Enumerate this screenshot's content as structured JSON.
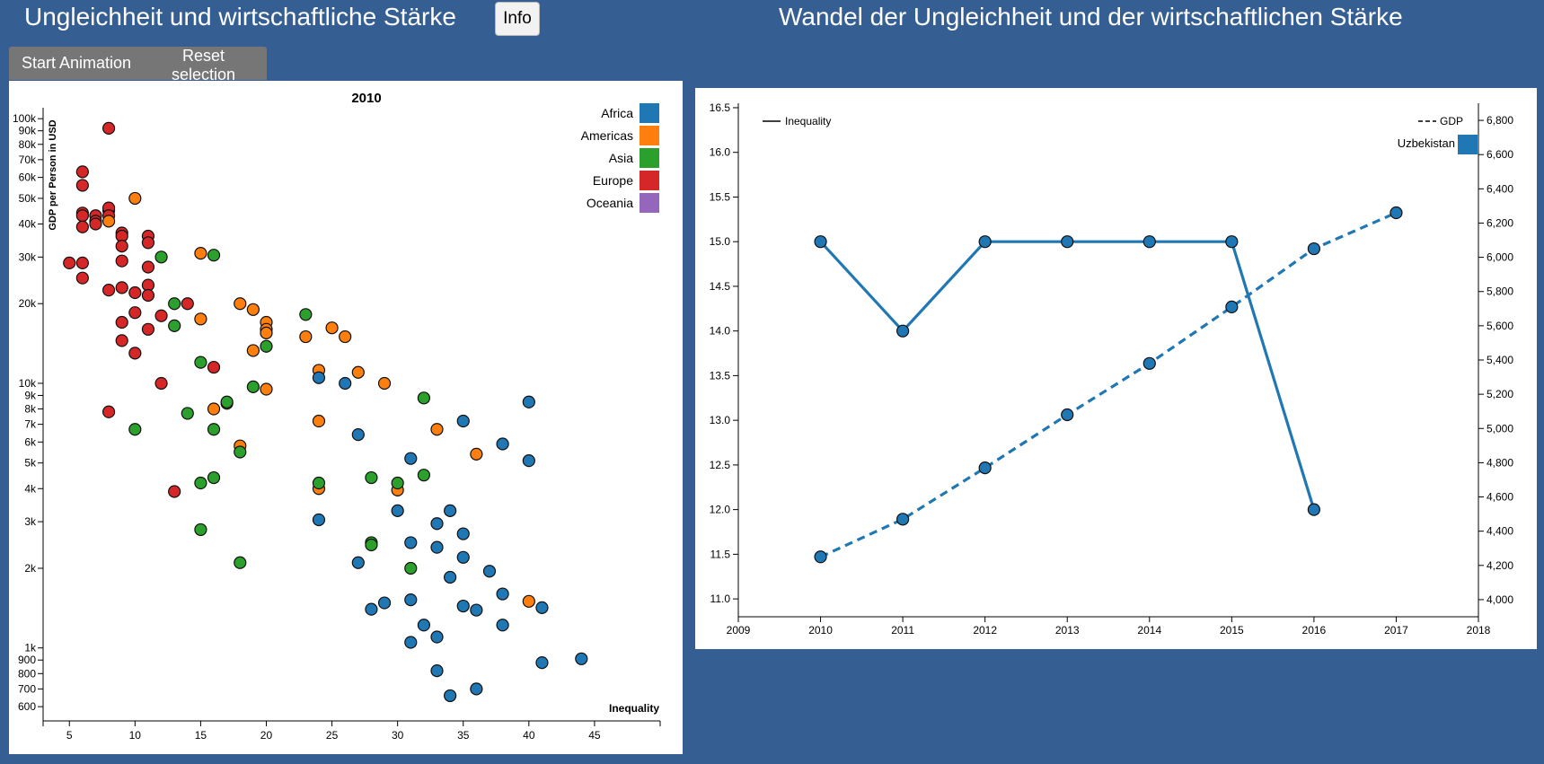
{
  "header": {
    "left_title": "Ungleichheit und wirtschaftliche Stärke",
    "info_label": "Info",
    "right_title": "Wandel der Ungleichheit und der wirtschaftlichen Stärke"
  },
  "controls": {
    "start_animation_label": "Start Animation",
    "reset_selection_label": "Reset selection"
  },
  "colors": {
    "page_background": "#355f93",
    "Africa": "#1f77b4",
    "Americas": "#ff7f0e",
    "Asia": "#2ca02c",
    "Europe": "#d62728",
    "Oceania": "#9467bd"
  },
  "chart_data": [
    {
      "type": "scatter",
      "title": "2010",
      "xlabel": "Inequality",
      "ylabel": "GDP per Person in USD",
      "y_scale": "log",
      "xlim": [
        3,
        50
      ],
      "ylim": [
        530,
        110000
      ],
      "x_ticks": [
        "5",
        "10",
        "15",
        "20",
        "25",
        "30",
        "35",
        "40",
        "45"
      ],
      "y_ticks": [
        {
          "v": 600,
          "l": "600"
        },
        {
          "v": 700,
          "l": "700"
        },
        {
          "v": 800,
          "l": "800"
        },
        {
          "v": 900,
          "l": "900"
        },
        {
          "v": 1000,
          "l": "1k"
        },
        {
          "v": 2000,
          "l": "2k"
        },
        {
          "v": 3000,
          "l": "3k"
        },
        {
          "v": 4000,
          "l": "4k"
        },
        {
          "v": 5000,
          "l": "5k"
        },
        {
          "v": 6000,
          "l": "6k"
        },
        {
          "v": 7000,
          "l": "7k"
        },
        {
          "v": 8000,
          "l": "8k"
        },
        {
          "v": 9000,
          "l": "9k"
        },
        {
          "v": 10000,
          "l": "10k"
        },
        {
          "v": 20000,
          "l": "20k"
        },
        {
          "v": 30000,
          "l": "30k"
        },
        {
          "v": 40000,
          "l": "40k"
        },
        {
          "v": 50000,
          "l": "50k"
        },
        {
          "v": 60000,
          "l": "60k"
        },
        {
          "v": 70000,
          "l": "70k"
        },
        {
          "v": 80000,
          "l": "80k"
        },
        {
          "v": 90000,
          "l": "90k"
        },
        {
          "v": 100000,
          "l": "100k"
        }
      ],
      "legend": [
        "Africa",
        "Americas",
        "Asia",
        "Europe",
        "Oceania"
      ],
      "legend_position": "top-right",
      "series": [
        {
          "name": "Europe",
          "points": [
            [
              8,
              92000
            ],
            [
              6,
              63000
            ],
            [
              6,
              56000
            ],
            [
              6,
              44000
            ],
            [
              6,
              43000
            ],
            [
              6,
              39000
            ],
            [
              7,
              43000
            ],
            [
              7,
              41000
            ],
            [
              7,
              40000
            ],
            [
              8,
              45000
            ],
            [
              8,
              46000
            ],
            [
              8,
              43000
            ],
            [
              9,
              37000
            ],
            [
              9,
              36000
            ],
            [
              9,
              33000
            ],
            [
              9,
              29000
            ],
            [
              9,
              23000
            ],
            [
              9,
              17000
            ],
            [
              9,
              14500
            ],
            [
              5,
              28500
            ],
            [
              6,
              28500
            ],
            [
              6,
              25000
            ],
            [
              8,
              22500
            ],
            [
              10,
              22000
            ],
            [
              10,
              18500
            ],
            [
              10,
              13000
            ],
            [
              11,
              36000
            ],
            [
              11,
              34000
            ],
            [
              11,
              27500
            ],
            [
              11,
              23500
            ],
            [
              11,
              21500
            ],
            [
              11,
              16000
            ],
            [
              12,
              18000
            ],
            [
              12,
              10000
            ],
            [
              14,
              20000
            ],
            [
              16,
              11500
            ],
            [
              8,
              7800
            ],
            [
              13,
              3900
            ]
          ]
        },
        {
          "name": "Americas",
          "points": [
            [
              10,
              50000
            ],
            [
              8,
              41000
            ],
            [
              15,
              31000
            ],
            [
              15,
              17500
            ],
            [
              18,
              20000
            ],
            [
              19,
              19000
            ],
            [
              20,
              17000
            ],
            [
              20,
              16000
            ],
            [
              20,
              15500
            ],
            [
              23,
              15000
            ],
            [
              25,
              16200
            ],
            [
              26,
              15000
            ],
            [
              19,
              13300
            ],
            [
              20,
              9500
            ],
            [
              24,
              11200
            ],
            [
              27,
              11000
            ],
            [
              29,
              10000
            ],
            [
              24,
              7200
            ],
            [
              16,
              8000
            ],
            [
              18,
              5800
            ],
            [
              33,
              6700
            ],
            [
              36,
              5400
            ],
            [
              24,
              4000
            ],
            [
              30,
              3950
            ],
            [
              40,
              1500
            ]
          ]
        },
        {
          "name": "Asia",
          "points": [
            [
              12,
              30000
            ],
            [
              16,
              30500
            ],
            [
              13,
              20000
            ],
            [
              13,
              16500
            ],
            [
              15,
              12000
            ],
            [
              20,
              13800
            ],
            [
              23,
              18200
            ],
            [
              14,
              7700
            ],
            [
              17,
              8400
            ],
            [
              17,
              8500
            ],
            [
              19,
              9700
            ],
            [
              10,
              6700
            ],
            [
              16,
              6700
            ],
            [
              18,
              5500
            ],
            [
              15,
              4200
            ],
            [
              16,
              4400
            ],
            [
              24,
              4200
            ],
            [
              28,
              4400
            ],
            [
              30,
              4200
            ],
            [
              32,
              4500
            ],
            [
              32,
              8800
            ],
            [
              15,
              2800
            ],
            [
              18,
              2100
            ],
            [
              28,
              2500
            ],
            [
              28,
              2450
            ],
            [
              31,
              2000
            ]
          ]
        },
        {
          "name": "Africa",
          "points": [
            [
              24,
              10500
            ],
            [
              26,
              10000
            ],
            [
              27,
              6400
            ],
            [
              40,
              8500
            ],
            [
              35,
              7200
            ],
            [
              38,
              5900
            ],
            [
              40,
              5100
            ],
            [
              31,
              5200
            ],
            [
              30,
              3300
            ],
            [
              34,
              3300
            ],
            [
              24,
              3050
            ],
            [
              33,
              2950
            ],
            [
              35,
              2700
            ],
            [
              31,
              2500
            ],
            [
              33,
              2400
            ],
            [
              35,
              2200
            ],
            [
              27,
              2100
            ],
            [
              37,
              1950
            ],
            [
              34,
              1850
            ],
            [
              38,
              1600
            ],
            [
              28,
              1400
            ],
            [
              29,
              1480
            ],
            [
              31,
              1520
            ],
            [
              35,
              1440
            ],
            [
              36,
              1390
            ],
            [
              41,
              1420
            ],
            [
              32,
              1220
            ],
            [
              38,
              1220
            ],
            [
              33,
              1100
            ],
            [
              31,
              1050
            ],
            [
              41,
              880
            ],
            [
              44,
              910
            ],
            [
              33,
              820
            ],
            [
              36,
              700
            ],
            [
              34,
              660
            ]
          ]
        }
      ]
    },
    {
      "type": "line",
      "x": [
        2010,
        2011,
        2012,
        2013,
        2014,
        2015,
        2016,
        2017
      ],
      "xlim": [
        2009,
        2018
      ],
      "x_ticks": [
        "2009",
        "2010",
        "2011",
        "2012",
        "2013",
        "2014",
        "2015",
        "2016",
        "2017",
        "2018"
      ],
      "ylim_left": [
        10.8,
        16.55
      ],
      "left_ticks": [
        "11.0",
        "11.5",
        "12.0",
        "12.5",
        "13.0",
        "13.5",
        "14.0",
        "14.5",
        "15.0",
        "15.5",
        "16.0",
        "16.5"
      ],
      "ylim_right": [
        3900,
        6900
      ],
      "right_ticks": [
        "4,000",
        "4,200",
        "4,400",
        "4,600",
        "4,800",
        "5,000",
        "5,200",
        "5,400",
        "5,600",
        "5,800",
        "6,000",
        "6,200",
        "6,400",
        "6,600",
        "6,800"
      ],
      "legend_inequality": "Inequality",
      "legend_gdp": "GDP",
      "country": "Uzbekistan",
      "series": [
        {
          "name": "Inequality",
          "axis": "left",
          "style": "solid",
          "x": [
            2010,
            2011,
            2012,
            2013,
            2014,
            2015,
            2016
          ],
          "values": [
            15,
            14,
            15,
            15,
            15,
            15,
            12
          ]
        },
        {
          "name": "GDP",
          "axis": "right",
          "style": "dashed",
          "x": [
            2010,
            2011,
            2012,
            2013,
            2014,
            2015,
            2016,
            2017
          ],
          "values": [
            4250,
            4470,
            4770,
            5080,
            5380,
            5710,
            6050,
            6260
          ]
        }
      ]
    }
  ]
}
